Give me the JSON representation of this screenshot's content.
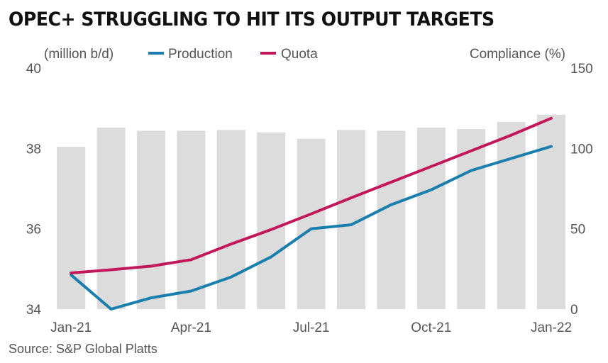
{
  "title": "OPEC+ STRUGGLING TO HIT ITS OUTPUT TARGETS",
  "source": "Source: S&P Global Platts",
  "colors": {
    "production": "#1b7fae",
    "quota": "#c2185b",
    "compliance_bars": "#dcdcdc",
    "axis_text": "#555555"
  },
  "chart_data": {
    "type": "bar+line",
    "title": "OPEC+ STRUGGLING TO HIT ITS OUTPUT TARGETS",
    "left_axis_label": "(million b/d)",
    "right_axis_label": "Compliance (%)",
    "left_ylim": [
      34,
      40
    ],
    "left_ticks": [
      "34",
      "36",
      "38",
      "40"
    ],
    "right_ylim": [
      0,
      150
    ],
    "right_ticks": [
      "0",
      "50",
      "100",
      "150"
    ],
    "x_tick_labels": [
      "Jan-21",
      "Apr-21",
      "Jul-21",
      "Oct-21",
      "Jan-22"
    ],
    "x_tick_positions": [
      0,
      3,
      6,
      9,
      12
    ],
    "categories": [
      "Jan-21",
      "Feb-21",
      "Mar-21",
      "Apr-21",
      "May-21",
      "Jun-21",
      "Jul-21",
      "Aug-21",
      "Sep-21",
      "Oct-21",
      "Nov-21",
      "Dec-21",
      "Jan-22"
    ],
    "legend": [
      {
        "name": "Production",
        "color": "#1b7fae"
      },
      {
        "name": "Quota",
        "color": "#c2185b"
      }
    ],
    "series": [
      {
        "name": "Compliance (%)",
        "type": "bar",
        "axis": "right",
        "values": [
          101,
          113,
          111,
          111,
          111.5,
          110,
          106,
          111.5,
          111,
          113,
          112,
          116.5,
          121
        ]
      },
      {
        "name": "Production",
        "type": "line",
        "axis": "left",
        "values": [
          34.85,
          34.0,
          34.28,
          34.45,
          34.8,
          35.3,
          36.0,
          36.1,
          36.6,
          36.97,
          37.45,
          37.75,
          38.05
        ]
      },
      {
        "name": "Quota",
        "type": "line",
        "axis": "left",
        "values": [
          34.9,
          34.98,
          35.07,
          35.23,
          35.62,
          35.98,
          36.37,
          36.77,
          37.16,
          37.55,
          37.94,
          38.33,
          38.75
        ]
      }
    ],
    "grid": false,
    "legend_position": "top"
  }
}
